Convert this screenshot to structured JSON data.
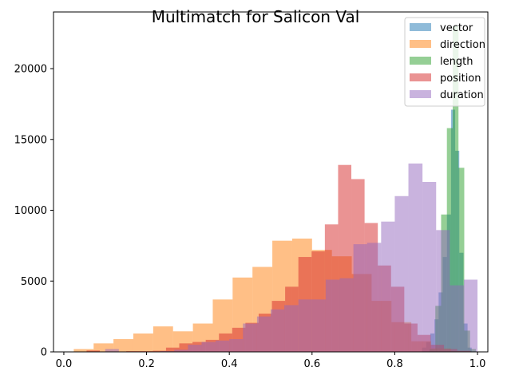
{
  "chart_data": {
    "type": "bar",
    "title": "Multimatch for Salicon Val",
    "xlabel": "",
    "ylabel": "",
    "xlim": [
      -0.025,
      1.025
    ],
    "ylim": [
      0,
      24000
    ],
    "xticks": [
      0.0,
      0.2,
      0.4,
      0.6,
      0.8,
      1.0
    ],
    "xtick_labels": [
      "0.0",
      "0.2",
      "0.4",
      "0.6",
      "0.8",
      "1.0"
    ],
    "yticks": [
      0,
      5000,
      10000,
      15000,
      20000
    ],
    "ytick_labels": [
      "0",
      "5000",
      "10000",
      "15000",
      "20000"
    ],
    "grid": false,
    "legend_position": "upper-right",
    "bar_alpha": 0.5,
    "series": [
      {
        "name": "vector",
        "color": "#1f77b4",
        "bins": [
          [
            0.856,
            0.866,
            0
          ],
          [
            0.866,
            0.876,
            300
          ],
          [
            0.876,
            0.886,
            700
          ],
          [
            0.886,
            0.896,
            1300
          ],
          [
            0.896,
            0.906,
            2300
          ],
          [
            0.906,
            0.916,
            4200
          ],
          [
            0.916,
            0.926,
            6700
          ],
          [
            0.926,
            0.936,
            9700
          ],
          [
            0.936,
            0.946,
            17100
          ],
          [
            0.946,
            0.956,
            14200
          ],
          [
            0.956,
            0.966,
            7000
          ],
          [
            0.966,
            0.976,
            2000
          ],
          [
            0.976,
            0.986,
            300
          ]
        ]
      },
      {
        "name": "direction",
        "color": "#ff7f0e",
        "bins": [
          [
            0.024,
            0.072,
            200
          ],
          [
            0.072,
            0.12,
            600
          ],
          [
            0.12,
            0.168,
            900
          ],
          [
            0.168,
            0.216,
            1300
          ],
          [
            0.216,
            0.264,
            1800
          ],
          [
            0.264,
            0.312,
            1450
          ],
          [
            0.312,
            0.36,
            2000
          ],
          [
            0.36,
            0.408,
            3700
          ],
          [
            0.408,
            0.456,
            5250
          ],
          [
            0.456,
            0.504,
            6000
          ],
          [
            0.504,
            0.552,
            7850
          ],
          [
            0.552,
            0.6,
            8000
          ],
          [
            0.6,
            0.648,
            7200
          ],
          [
            0.648,
            0.696,
            6750
          ],
          [
            0.696,
            0.744,
            5500
          ],
          [
            0.744,
            0.792,
            3600
          ],
          [
            0.792,
            0.84,
            2100
          ],
          [
            0.84,
            0.888,
            750
          ],
          [
            0.888,
            0.936,
            250
          ],
          [
            0.936,
            0.984,
            50
          ]
        ]
      },
      {
        "name": "length",
        "color": "#2ca02c",
        "bins": [
          [
            0.884,
            0.898,
            200
          ],
          [
            0.898,
            0.912,
            3250
          ],
          [
            0.912,
            0.926,
            9700
          ],
          [
            0.926,
            0.94,
            15800
          ],
          [
            0.94,
            0.954,
            23000
          ],
          [
            0.954,
            0.968,
            13000
          ],
          [
            0.968,
            0.982,
            1500
          ],
          [
            0.982,
            0.996,
            200
          ]
        ]
      },
      {
        "name": "position",
        "color": "#d62728",
        "bins": [
          [
            0.055,
            0.087,
            100
          ],
          [
            0.087,
            0.119,
            0
          ],
          [
            0.119,
            0.151,
            0
          ],
          [
            0.151,
            0.183,
            50
          ],
          [
            0.183,
            0.215,
            50
          ],
          [
            0.215,
            0.247,
            80
          ],
          [
            0.247,
            0.279,
            300
          ],
          [
            0.279,
            0.311,
            600
          ],
          [
            0.311,
            0.343,
            700
          ],
          [
            0.343,
            0.375,
            850
          ],
          [
            0.375,
            0.407,
            1300
          ],
          [
            0.407,
            0.439,
            1700
          ],
          [
            0.439,
            0.471,
            2050
          ],
          [
            0.471,
            0.503,
            2700
          ],
          [
            0.503,
            0.535,
            3600
          ],
          [
            0.535,
            0.567,
            4600
          ],
          [
            0.567,
            0.599,
            6700
          ],
          [
            0.599,
            0.631,
            7100
          ],
          [
            0.631,
            0.663,
            9000
          ],
          [
            0.663,
            0.695,
            13200
          ],
          [
            0.695,
            0.727,
            12200
          ],
          [
            0.727,
            0.759,
            9100
          ],
          [
            0.759,
            0.791,
            6100
          ],
          [
            0.791,
            0.823,
            4600
          ],
          [
            0.823,
            0.855,
            2000
          ],
          [
            0.855,
            0.887,
            1200
          ],
          [
            0.887,
            0.919,
            500
          ],
          [
            0.919,
            0.951,
            200
          ],
          [
            0.951,
            0.983,
            80
          ]
        ]
      },
      {
        "name": "duration",
        "color": "#9467bd",
        "bins": [
          [
            0.08,
            0.1,
            0
          ],
          [
            0.1,
            0.133,
            200
          ],
          [
            0.133,
            0.167,
            0
          ],
          [
            0.167,
            0.2,
            0
          ],
          [
            0.2,
            0.233,
            0
          ],
          [
            0.233,
            0.267,
            50
          ],
          [
            0.267,
            0.3,
            150
          ],
          [
            0.3,
            0.333,
            500
          ],
          [
            0.333,
            0.367,
            700
          ],
          [
            0.367,
            0.4,
            800
          ],
          [
            0.4,
            0.433,
            900
          ],
          [
            0.433,
            0.467,
            2000
          ],
          [
            0.467,
            0.5,
            2500
          ],
          [
            0.5,
            0.533,
            3000
          ],
          [
            0.533,
            0.567,
            3300
          ],
          [
            0.567,
            0.6,
            3700
          ],
          [
            0.6,
            0.633,
            3700
          ],
          [
            0.633,
            0.667,
            5100
          ],
          [
            0.667,
            0.7,
            5200
          ],
          [
            0.7,
            0.733,
            7600
          ],
          [
            0.733,
            0.767,
            7700
          ],
          [
            0.767,
            0.8,
            9200
          ],
          [
            0.8,
            0.833,
            11000
          ],
          [
            0.833,
            0.867,
            13300
          ],
          [
            0.867,
            0.9,
            12000
          ],
          [
            0.9,
            0.933,
            8600
          ],
          [
            0.933,
            0.967,
            4700
          ],
          [
            0.967,
            1.0,
            5100
          ]
        ]
      }
    ]
  }
}
